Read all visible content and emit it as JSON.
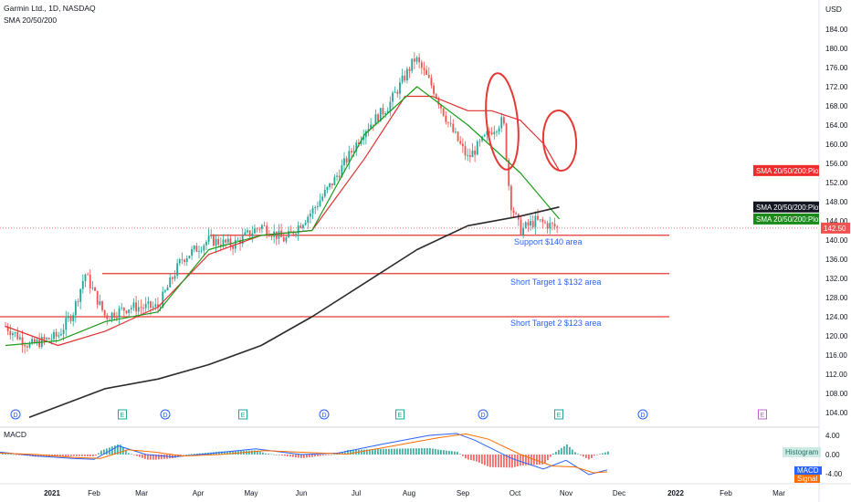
{
  "header": {
    "symbol_line": "Garmin Ltd., 1D, NASDAQ",
    "indicator_line": "SMA 20/50/200",
    "currency": "USD"
  },
  "price_axis": {
    "ticks": [
      "184.00",
      "180.00",
      "176.00",
      "172.00",
      "168.00",
      "164.00",
      "160.00",
      "156.00",
      "152.00",
      "148.00",
      "144.00",
      "140.00",
      "136.00",
      "132.00",
      "128.00",
      "124.00",
      "120.00",
      "116.00",
      "112.00",
      "108.00",
      "104.00"
    ],
    "labels": [
      {
        "text": "SMA 20/50/200:Plot",
        "value": 154.5,
        "color": "#ef2b2b"
      },
      {
        "text": "SMA 20/50/200:Plot",
        "value": 146.9,
        "color": "#131722"
      },
      {
        "text": "SMA 20/50/200:Plot",
        "value": 144.4,
        "color": "#1a8a1a"
      },
      {
        "text": "142.50",
        "value": 142.5,
        "color": "#ef5350"
      }
    ]
  },
  "time_axis": [
    "2021",
    "Feb",
    "Mar",
    "Apr",
    "May",
    "Jun",
    "Jul",
    "Aug",
    "Sep",
    "Oct",
    "Nov",
    "Dec",
    "2022",
    "Feb",
    "Mar"
  ],
  "annotations": {
    "support": "Support $140 area",
    "target1": "Short Target 1 $132 area",
    "target2": "Short Target 2 $123 area"
  },
  "event_markers": [
    "D",
    "E",
    "D",
    "E",
    "D",
    "E",
    "D",
    "E",
    "D",
    "E"
  ],
  "macd": {
    "title": "MACD",
    "axis_ticks": [
      "4.00",
      "0.00",
      "-4.00"
    ],
    "histogram_label": "Histogram",
    "macd_label": "MACD",
    "signal_label": "Signal"
  },
  "colors": {
    "sma20": "#1a9c1a",
    "sma50": "#e03131",
    "sma200": "#2b2b2b",
    "candle_up": "#26a69a",
    "candle_down": "#ef5350",
    "level_line": "#e53935",
    "annotation_text": "#2962ff",
    "ellipse": "#e53935",
    "macd_line": "#2962ff",
    "signal_line": "#ff6d00"
  },
  "chart_data": {
    "type": "line",
    "title": "Garmin Ltd., 1D, NASDAQ",
    "ylabel": "USD",
    "ylim": [
      102,
      186
    ],
    "series": [
      {
        "name": "SMA 20/50/200:Plot",
        "x": [
          "2021-01-01",
          "2021-02-01",
          "2021-03-01",
          "2021-04-01",
          "2021-05-01",
          "2021-06-01",
          "2021-07-01",
          "2021-08-01",
          "2021-08-25",
          "2021-09-10",
          "2021-10-01",
          "2021-10-15",
          "2021-11-01",
          "2021-11-15",
          "2021-11-24"
        ],
        "values": [
          122,
          118,
          121,
          126,
          137,
          141,
          142,
          157,
          170,
          170,
          167,
          167,
          165,
          160,
          154.5
        ]
      },
      {
        "name": "SMA 20/50/200:Plot",
        "x": [
          "2021-01-01",
          "2021-02-01",
          "2021-03-01",
          "2021-04-01",
          "2021-05-01",
          "2021-06-01",
          "2021-07-01",
          "2021-08-01",
          "2021-09-01",
          "2021-10-01",
          "2021-11-01",
          "2021-11-24"
        ],
        "values": [
          118,
          119,
          123,
          125,
          138,
          141,
          142,
          162,
          172,
          164,
          154,
          144.4
        ]
      },
      {
        "name": "SMA 20/50/200:Plot",
        "x": [
          "2021-01-15",
          "2021-03-01",
          "2021-04-01",
          "2021-05-01",
          "2021-06-01",
          "2021-07-01",
          "2021-08-01",
          "2021-09-01",
          "2021-10-01",
          "2021-11-01",
          "2021-11-24"
        ],
        "values": [
          103,
          109,
          111,
          114,
          118,
          124,
          131,
          138,
          143,
          145,
          146.9
        ]
      }
    ],
    "close_approx": {
      "x": [
        "2021-01-01",
        "2021-01-15",
        "2021-02-01",
        "2021-02-10",
        "2021-02-17",
        "2021-03-01",
        "2021-03-15",
        "2021-04-01",
        "2021-04-15",
        "2021-05-01",
        "2021-05-15",
        "2021-06-01",
        "2021-06-15",
        "2021-07-01",
        "2021-07-15",
        "2021-08-01",
        "2021-08-15",
        "2021-08-31",
        "2021-09-10",
        "2021-09-20",
        "2021-10-01",
        "2021-10-08",
        "2021-10-15",
        "2021-10-22",
        "2021-10-26",
        "2021-11-01",
        "2021-11-10",
        "2021-11-24"
      ],
      "values": [
        122,
        118,
        120,
        125,
        133,
        124,
        126,
        126,
        136,
        140,
        139,
        143,
        140,
        146,
        153,
        163,
        168,
        178,
        172,
        164,
        157,
        160,
        163,
        165,
        148,
        142,
        144,
        142.5
      ]
    },
    "levels": [
      {
        "name": "Support $140 area",
        "value": 141
      },
      {
        "name": "Short Target 1 $132 area",
        "value": 133
      },
      {
        "name": "Short Target 2 $123 area",
        "value": 124
      }
    ],
    "last_price": 142.5,
    "grid": false,
    "legend": "right price axis"
  }
}
